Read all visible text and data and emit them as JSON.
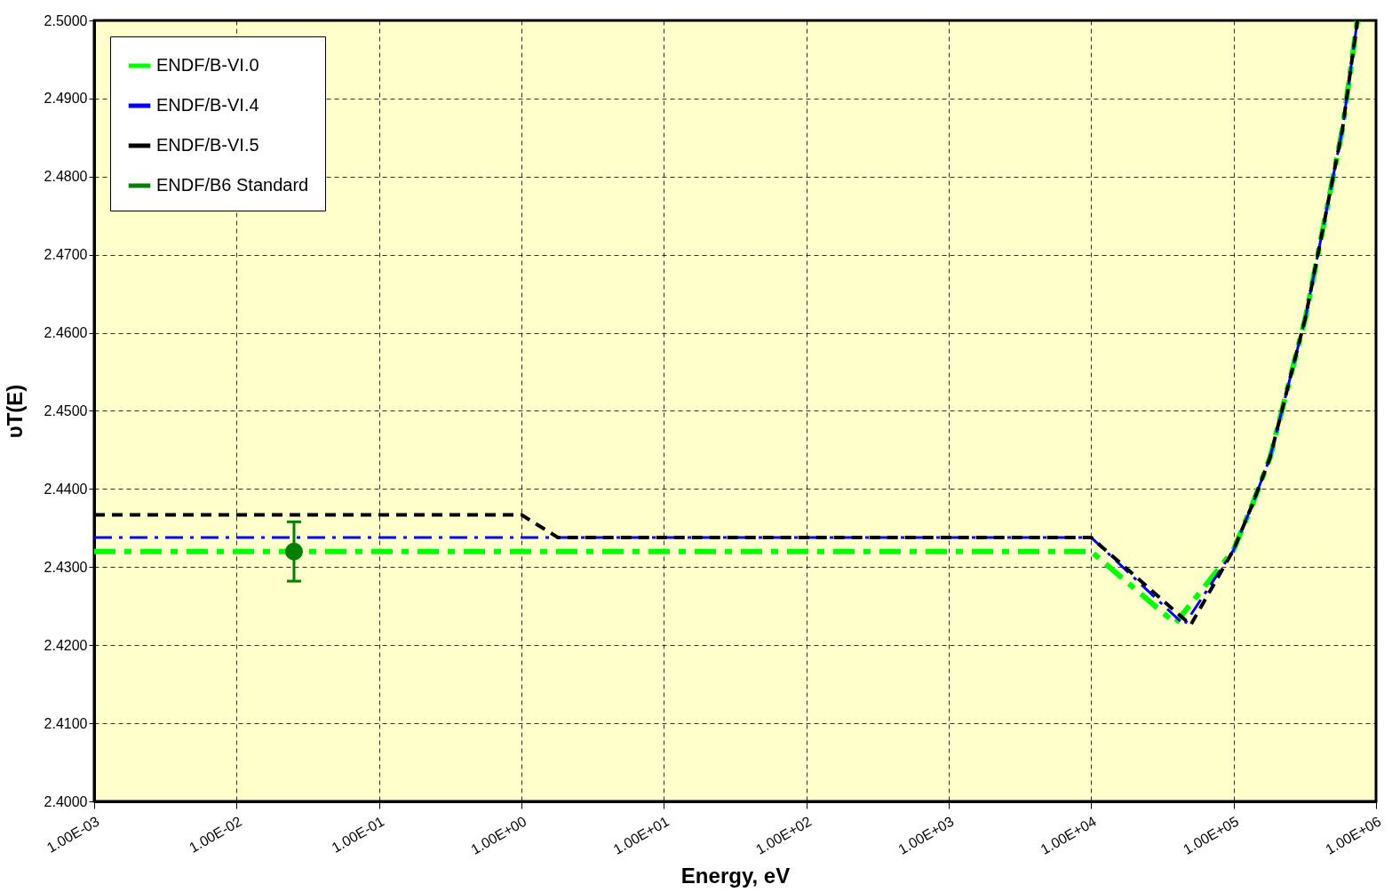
{
  "chart_data": {
    "type": "line",
    "xlabel": "Energy, eV",
    "ylabel": "υT(E)",
    "log": "x",
    "grid": true,
    "legend": "top left",
    "xlim": [
      0.001,
      1000000
    ],
    "ylim": [
      2.4,
      2.5
    ],
    "xticks": [
      {
        "value": 0.001,
        "label": "1.00E-03"
      },
      {
        "value": 0.01,
        "label": "1.00E-02"
      },
      {
        "value": 0.1,
        "label": "1.00E-01"
      },
      {
        "value": 1,
        "label": "1.00E+00"
      },
      {
        "value": 10,
        "label": "1.00E+01"
      },
      {
        "value": 100,
        "label": "1.00E+02"
      },
      {
        "value": 1000,
        "label": "1.00E+03"
      },
      {
        "value": 10000,
        "label": "1.00E+04"
      },
      {
        "value": 100000,
        "label": "1.00E+05"
      },
      {
        "value": 1000000,
        "label": "1.00E+06"
      }
    ],
    "yticks": [
      {
        "value": 2.4,
        "label": "2.4000"
      },
      {
        "value": 2.41,
        "label": "2.4100"
      },
      {
        "value": 2.42,
        "label": "2.4200"
      },
      {
        "value": 2.43,
        "label": "2.4300"
      },
      {
        "value": 2.44,
        "label": "2.4400"
      },
      {
        "value": 2.45,
        "label": "2.4500"
      },
      {
        "value": 2.46,
        "label": "2.4600"
      },
      {
        "value": 2.47,
        "label": "2.4700"
      },
      {
        "value": 2.48,
        "label": "2.4800"
      },
      {
        "value": 2.49,
        "label": "2.4900"
      },
      {
        "value": 2.5,
        "label": "2.5000"
      }
    ],
    "series": [
      {
        "name": "ENDF/B-VI.0",
        "color": "#00ff00",
        "line_style": "dashed",
        "marker": "none",
        "x": [
          0.001,
          10000,
          39000,
          100000,
          136000,
          180000,
          320000,
          580000,
          740000
        ],
        "values": [
          2.432,
          2.432,
          2.4228,
          2.4322,
          2.4381,
          2.444,
          2.462,
          2.486,
          2.5
        ]
      },
      {
        "name": "ENDF/B-VI.4",
        "color": "#0000ff",
        "line_style": "dashed",
        "marker": "none",
        "x": [
          0.001,
          10000,
          45000,
          100000,
          136000,
          180000,
          320000,
          580000,
          740000
        ],
        "values": [
          2.4338,
          2.4338,
          2.4226,
          2.4322,
          2.4381,
          2.444,
          2.462,
          2.486,
          2.5
        ]
      },
      {
        "name": "ENDF/B-VI.5",
        "color": "#000000",
        "line_style": "dashed",
        "marker": "none",
        "x": [
          0.001,
          1.0,
          1.8,
          10000,
          50000,
          100000,
          136000,
          180000,
          320000,
          580000,
          740000
        ],
        "values": [
          2.4367,
          2.4367,
          2.4338,
          2.4338,
          2.4226,
          2.4322,
          2.4381,
          2.444,
          2.462,
          2.486,
          2.5
        ]
      },
      {
        "name": "ENDF/B6 Standard",
        "color": "#008000",
        "type": "scatter",
        "marker": "circle",
        "x": [
          0.0253
        ],
        "values": [
          2.432
        ],
        "errors": [
          0.0038
        ]
      }
    ]
  }
}
